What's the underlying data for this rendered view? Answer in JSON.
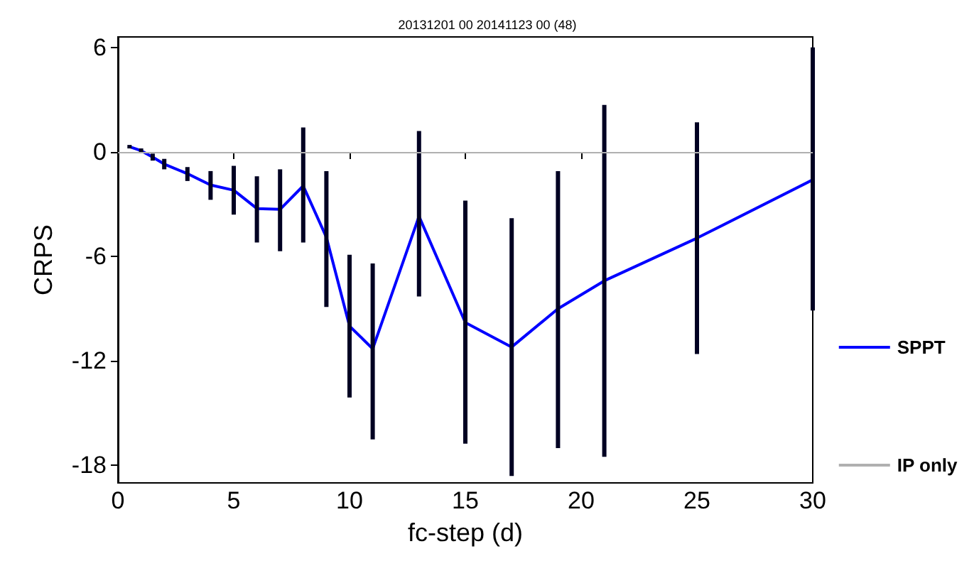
{
  "chart_data": {
    "type": "line",
    "title": "20131201 00 20141123 00 (48)",
    "xlabel": "fc-step (d)",
    "ylabel": "CRPS",
    "x": [
      0.5,
      1,
      1.5,
      2,
      3,
      4,
      5,
      6,
      7,
      8,
      9,
      10,
      11,
      13,
      15,
      17,
      19,
      21,
      25,
      30
    ],
    "series": [
      {
        "name": "SPPT",
        "color": "#0000ff",
        "values": [
          0.3,
          0.07,
          -0.3,
          -0.7,
          -1.25,
          -1.9,
          -2.2,
          -3.25,
          -3.3,
          -1.95,
          -4.9,
          -10.0,
          -11.3,
          -3.7,
          -9.8,
          -11.2,
          -9.0,
          -7.4,
          -4.95,
          -1.6
        ],
        "errors": [
          [
            0.2,
            0.4
          ],
          [
            -0.05,
            0.2
          ],
          [
            -0.5,
            -0.1
          ],
          [
            -1.0,
            -0.4
          ],
          [
            -1.67,
            -0.87
          ],
          [
            -2.75,
            -1.1
          ],
          [
            -3.6,
            -0.8
          ],
          [
            -5.2,
            -1.4
          ],
          [
            -5.7,
            -1.0
          ],
          [
            -5.2,
            1.4
          ],
          [
            -8.9,
            -1.1
          ],
          [
            -14.1,
            -5.9
          ],
          [
            -16.5,
            -6.4
          ],
          [
            -8.3,
            1.2
          ],
          [
            -16.75,
            -2.8
          ],
          [
            -18.6,
            -3.8
          ],
          [
            -17.0,
            -1.1
          ],
          [
            -17.5,
            2.7
          ],
          [
            -11.6,
            1.7
          ],
          [
            -9.1,
            6.0
          ]
        ]
      }
    ],
    "ref_lines": [
      {
        "axis": "y",
        "value": 0,
        "label": "IP only",
        "color": "#b0b0b0"
      }
    ],
    "xlim": [
      0,
      30
    ],
    "xticks": [
      0,
      5,
      10,
      15,
      20,
      25,
      30
    ],
    "ylim": [
      -19,
      6.6
    ],
    "yticks": [
      6,
      0,
      -6,
      -12,
      -18
    ],
    "grid": false,
    "legend": "right",
    "marker": "none",
    "line_style": "solid"
  }
}
